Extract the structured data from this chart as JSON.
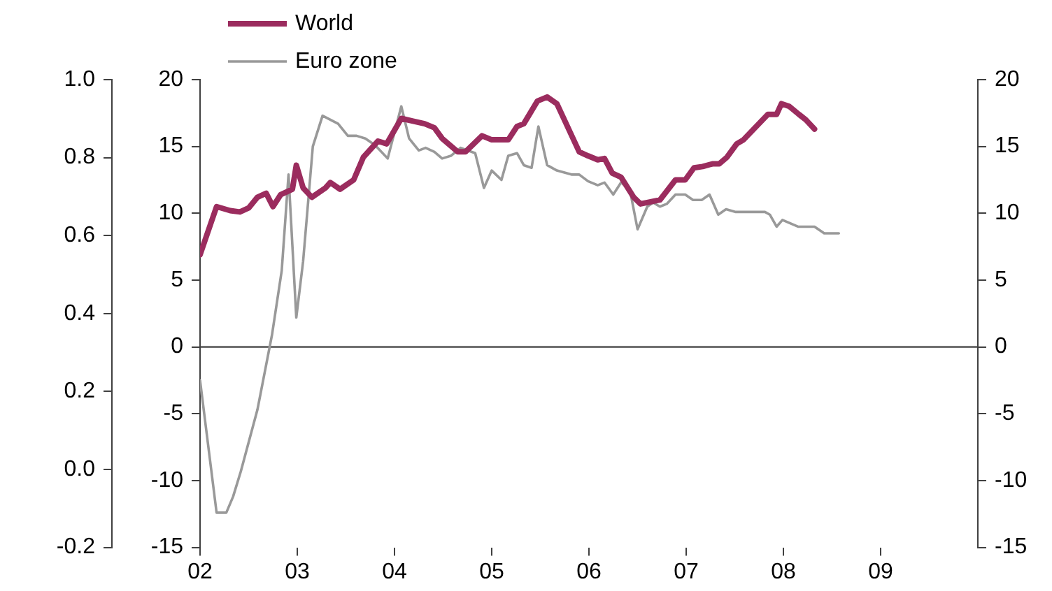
{
  "chart_data": {
    "type": "line",
    "legend": "top left",
    "marker": "none",
    "grid": false,
    "xlim": [
      2002,
      2010
    ],
    "xticks": [
      {
        "value": 2002,
        "label": "02"
      },
      {
        "value": 2003,
        "label": "03"
      },
      {
        "value": 2004,
        "label": "04"
      },
      {
        "value": 2005,
        "label": "05"
      },
      {
        "value": 2006,
        "label": "06"
      },
      {
        "value": 2007,
        "label": "07"
      },
      {
        "value": 2008,
        "label": "08"
      },
      {
        "value": 2009,
        "label": "09"
      }
    ],
    "ylim": [
      -15,
      20
    ],
    "yticks": [
      -15,
      -10,
      -5,
      0,
      5,
      10,
      15,
      20
    ],
    "y2lim": [
      -15,
      20
    ],
    "y2ticks": [
      -15,
      -10,
      -5,
      0,
      5,
      10,
      15,
      20
    ],
    "y3lim": [
      -0.2,
      1.0
    ],
    "y3ticks": [
      -0.2,
      {
        "value": 0,
        "label": "0.0"
      },
      0.2,
      0.4,
      0.6,
      0.8,
      {
        "value": 1,
        "label": "1.0"
      }
    ],
    "ref_lines": [
      {
        "axis": "y",
        "value": 0,
        "color": "#404040"
      }
    ],
    "series": [
      {
        "name": "World",
        "color": "#9b2c5e",
        "x": [
          2002.0,
          2002.17,
          2002.31,
          2002.41,
          2002.5,
          2002.59,
          2002.68,
          2002.75,
          2002.83,
          2002.95,
          2002.99,
          2003.06,
          2003.15,
          2003.29,
          2003.34,
          2003.44,
          2003.58,
          2003.68,
          2003.83,
          2003.92,
          2004.07,
          2004.19,
          2004.31,
          2004.41,
          2004.49,
          2004.65,
          2004.73,
          2004.9,
          2005.0,
          2005.17,
          2005.26,
          2005.33,
          2005.47,
          2005.57,
          2005.67,
          2005.9,
          2005.99,
          2006.09,
          2006.16,
          2006.24,
          2006.33,
          2006.46,
          2006.53,
          2006.73,
          2006.89,
          2006.99,
          2007.08,
          2007.17,
          2007.27,
          2007.34,
          2007.42,
          2007.52,
          2007.59,
          2007.84,
          2007.93,
          2007.98,
          2008.06,
          2008.16,
          2008.23,
          2008.32
        ],
        "values": [
          6.9,
          10.5,
          10.2,
          10.1,
          10.4,
          11.2,
          11.5,
          10.5,
          11.4,
          11.8,
          13.6,
          11.9,
          11.2,
          11.9,
          12.3,
          11.8,
          12.5,
          14.2,
          15.4,
          15.2,
          17.1,
          16.9,
          16.7,
          16.4,
          15.6,
          14.6,
          14.6,
          15.8,
          15.5,
          15.5,
          16.5,
          16.7,
          18.4,
          18.7,
          18.2,
          14.6,
          14.3,
          14.0,
          14.1,
          13.0,
          12.7,
          11.2,
          10.7,
          11.0,
          12.5,
          12.5,
          13.4,
          13.5,
          13.7,
          13.7,
          14.2,
          15.2,
          15.5,
          17.4,
          17.4,
          18.2,
          18.0,
          17.4,
          17.0,
          16.3
        ]
      },
      {
        "name": "Euro zone",
        "color": "#999999",
        "x": [
          2002.0,
          2002.17,
          2002.27,
          2002.34,
          2002.42,
          2002.59,
          2002.74,
          2002.84,
          2002.91,
          2002.99,
          2003.06,
          2003.16,
          2003.26,
          2003.42,
          2003.52,
          2003.61,
          2003.7,
          2003.8,
          2003.93,
          2004.07,
          2004.15,
          2004.25,
          2004.32,
          2004.41,
          2004.49,
          2004.58,
          2004.68,
          2004.83,
          2004.92,
          2005.0,
          2005.1,
          2005.17,
          2005.26,
          2005.33,
          2005.41,
          2005.48,
          2005.57,
          2005.67,
          2005.82,
          2005.9,
          2005.99,
          2006.09,
          2006.16,
          2006.25,
          2006.33,
          2006.42,
          2006.5,
          2006.6,
          2006.66,
          2006.73,
          2006.8,
          2006.89,
          2006.99,
          2007.07,
          2007.16,
          2007.24,
          2007.33,
          2007.41,
          2007.51,
          2007.81,
          2007.86,
          2007.93,
          2007.99,
          2008.15,
          2008.32,
          2008.42,
          2008.57
        ],
        "values": [
          -2.5,
          -12.4,
          -12.4,
          -11.2,
          -9.3,
          -4.7,
          0.9,
          5.7,
          12.9,
          2.2,
          6.4,
          15.0,
          17.3,
          16.7,
          15.8,
          15.8,
          15.6,
          15.1,
          14.1,
          18.0,
          15.6,
          14.7,
          14.9,
          14.6,
          14.1,
          14.3,
          14.9,
          14.5,
          11.9,
          13.2,
          12.5,
          14.3,
          14.5,
          13.6,
          13.4,
          16.5,
          13.6,
          13.2,
          12.9,
          12.9,
          12.4,
          12.1,
          12.3,
          11.4,
          12.3,
          11.8,
          8.8,
          10.5,
          10.8,
          10.5,
          10.7,
          11.4,
          11.4,
          11.0,
          11.0,
          11.4,
          9.9,
          10.3,
          10.1,
          10.1,
          9.9,
          9.0,
          9.5,
          9.0,
          9.0,
          8.5,
          8.5
        ]
      }
    ]
  }
}
